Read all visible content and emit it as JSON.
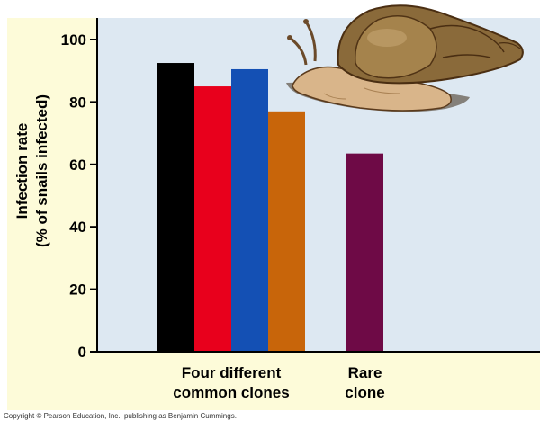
{
  "chart_data": {
    "type": "bar",
    "ylabel_line1": "Infection rate",
    "ylabel_line2": "(% of snails infected)",
    "ylim": [
      0,
      100
    ],
    "yticks": [
      0,
      20,
      40,
      60,
      80,
      100
    ],
    "grid": false,
    "groups": [
      {
        "label_line1": "Four different",
        "label_line2": "common clones",
        "bars": [
          {
            "value": 92.5,
            "color": "#000000"
          },
          {
            "value": 85,
            "color": "#e8001c"
          },
          {
            "value": 90.5,
            "color": "#1450b4"
          },
          {
            "value": 77,
            "color": "#c8650a"
          }
        ]
      },
      {
        "label_line1": "Rare",
        "label_line2": "clone",
        "bars": [
          {
            "value": 63.5,
            "color": "#6e0a46"
          }
        ]
      }
    ],
    "illustration": "snail-icon",
    "colors": {
      "plot_background": "#dde8f2",
      "outer_background": "#fdfbd9"
    }
  },
  "footer": {
    "copyright": "Copyright © Pearson Education, Inc., publishing as Benjamin Cummings."
  }
}
